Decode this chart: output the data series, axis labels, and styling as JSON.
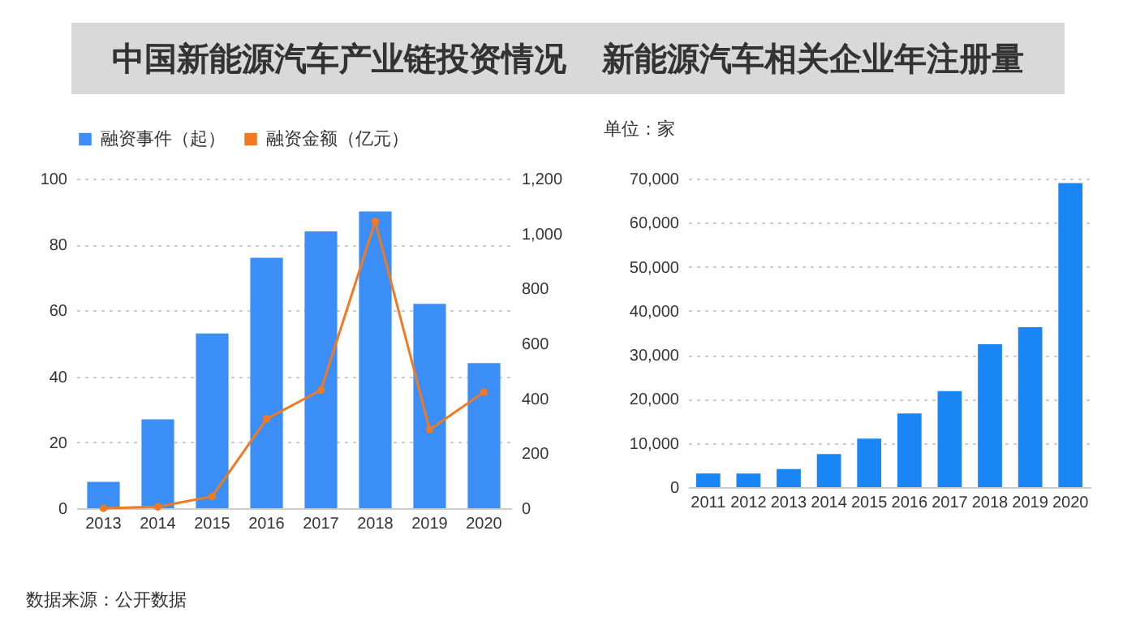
{
  "chart_data": [
    {
      "type": "bar",
      "title": "中国新能源汽车产业链投资情况",
      "categories": [
        "2013",
        "2014",
        "2015",
        "2016",
        "2017",
        "2018",
        "2019",
        "2020"
      ],
      "series": [
        {
          "name": "融资事件（起）",
          "color": "#3a8ef6",
          "values": [
            8,
            27,
            53,
            76,
            84,
            90,
            62,
            44
          ]
        },
        {
          "name": "融资金额（亿元）",
          "type": "line",
          "axis": "y2",
          "color": "#f07a22",
          "values": [
            0,
            5,
            43,
            325,
            430,
            1044,
            286,
            423
          ]
        }
      ],
      "ylim": [
        0,
        100
      ],
      "yticks": [
        0,
        20,
        40,
        60,
        80,
        100
      ],
      "y2lim": [
        0,
        1200
      ],
      "y2ticks": [
        0,
        200,
        400,
        600,
        800,
        {
          "value": 1000,
          "label": "1,000"
        },
        {
          "value": 1200,
          "label": "1,200"
        }
      ],
      "grid": "y",
      "legend": "top left",
      "marker": "circle",
      "line_style": "solid",
      "annotations": [
        "数据来源：公开数据"
      ]
    },
    {
      "type": "bar",
      "title": "新能源汽车相关企业年注册量",
      "subtitle": "单位：家",
      "categories": [
        "2011",
        "2012",
        "2013",
        "2014",
        "2015",
        "2016",
        "2017",
        "2018",
        "2019",
        "2020"
      ],
      "series": [
        {
          "color": "#1a85f5",
          "values": [
            3100,
            3100,
            4100,
            7500,
            11000,
            16700,
            21800,
            32400,
            36300,
            69000
          ]
        }
      ],
      "ylim": [
        0,
        70000
      ],
      "yticks": [
        0,
        {
          "value": 10000,
          "label": "10,000"
        },
        {
          "value": 20000,
          "label": "20,000"
        },
        {
          "value": 30000,
          "label": "30,000"
        },
        {
          "value": 40000,
          "label": "40,000"
        },
        {
          "value": 50000,
          "label": "50,000"
        },
        {
          "value": 60000,
          "label": "60,000"
        },
        {
          "value": 70000,
          "label": "70,000"
        }
      ],
      "grid": "y"
    }
  ]
}
